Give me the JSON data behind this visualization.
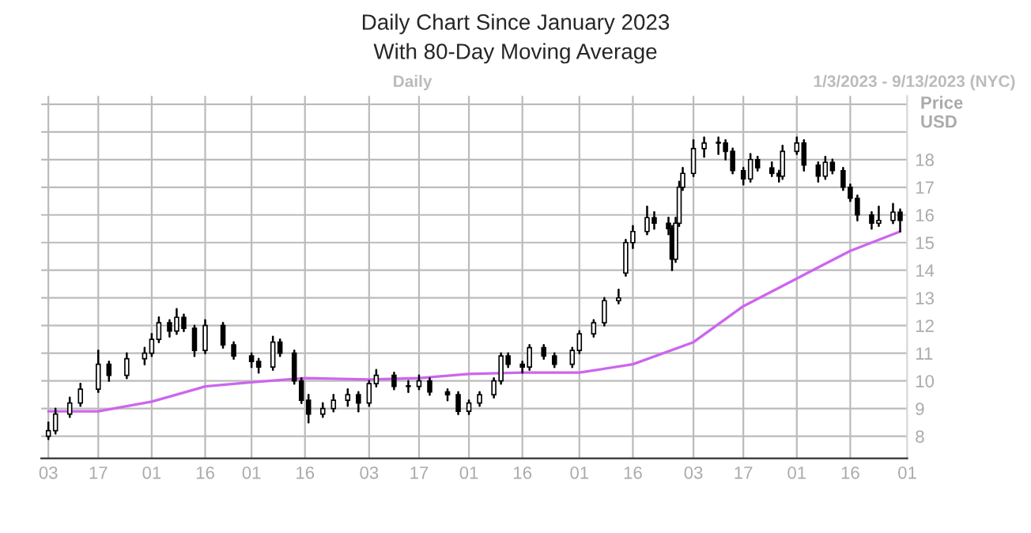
{
  "chart_data": {
    "type": "candlestick",
    "title": "Daily Chart Since January 2023",
    "subtitle": "With 80-Day Moving Average",
    "ylabel": "Price\nUSD",
    "annotations": [
      "Daily",
      "1/3/2023 - 9/13/2023 (NYC)"
    ],
    "x": [
      "2023-01-03",
      "2023-01-05",
      "2023-01-09",
      "2023-01-12",
      "2023-01-17",
      "2023-01-20",
      "2023-01-25",
      "2023-01-30",
      "2023-02-01",
      "2023-02-03",
      "2023-02-06",
      "2023-02-08",
      "2023-02-10",
      "2023-02-13",
      "2023-02-16",
      "2023-02-21",
      "2023-02-24",
      "2023-03-01",
      "2023-03-03",
      "2023-03-07",
      "2023-03-09",
      "2023-03-13",
      "2023-03-15",
      "2023-03-17",
      "2023-03-21",
      "2023-03-24",
      "2023-03-28",
      "2023-03-31",
      "2023-04-03",
      "2023-04-05",
      "2023-04-10",
      "2023-04-14",
      "2023-04-17",
      "2023-04-20",
      "2023-04-25",
      "2023-04-28",
      "2023-05-01",
      "2023-05-04",
      "2023-05-08",
      "2023-05-10",
      "2023-05-12",
      "2023-05-16",
      "2023-05-18",
      "2023-05-22",
      "2023-05-25",
      "2023-05-30",
      "2023-06-01",
      "2023-06-05",
      "2023-06-08",
      "2023-06-12",
      "2023-06-14",
      "2023-06-16",
      "2023-06-20",
      "2023-06-22",
      "2023-06-26",
      "2023-06-27",
      "2023-06-28",
      "2023-06-29",
      "2023-06-30",
      "2023-07-03",
      "2023-07-06",
      "2023-07-10",
      "2023-07-12",
      "2023-07-14",
      "2023-07-17",
      "2023-07-19",
      "2023-07-21",
      "2023-07-25",
      "2023-07-27",
      "2023-07-28",
      "2023-08-01",
      "2023-08-03",
      "2023-08-07",
      "2023-08-09",
      "2023-08-11",
      "2023-08-14",
      "2023-08-16",
      "2023-08-18",
      "2023-08-22",
      "2023-08-24",
      "2023-08-28",
      "2023-08-30"
    ],
    "ohlc": [
      [
        8.0,
        8.5,
        7.9,
        8.2
      ],
      [
        8.2,
        9.0,
        8.1,
        8.8
      ],
      [
        8.8,
        9.4,
        8.7,
        9.2
      ],
      [
        9.2,
        9.9,
        9.1,
        9.7
      ],
      [
        9.7,
        11.1,
        9.6,
        10.6
      ],
      [
        10.6,
        10.7,
        10.0,
        10.2
      ],
      [
        10.2,
        11.0,
        10.1,
        10.8
      ],
      [
        10.8,
        11.2,
        10.6,
        11.0
      ],
      [
        11.0,
        11.7,
        10.9,
        11.5
      ],
      [
        11.5,
        12.3,
        11.4,
        12.1
      ],
      [
        12.1,
        12.2,
        11.6,
        11.8
      ],
      [
        11.8,
        12.6,
        11.7,
        12.3
      ],
      [
        12.3,
        12.4,
        11.8,
        11.9
      ],
      [
        11.9,
        12.0,
        10.9,
        11.1
      ],
      [
        11.1,
        12.2,
        11.0,
        12.0
      ],
      [
        12.0,
        12.1,
        11.2,
        11.3
      ],
      [
        11.3,
        11.4,
        10.8,
        10.9
      ],
      [
        10.9,
        11.0,
        10.5,
        10.7
      ],
      [
        10.7,
        10.8,
        10.3,
        10.5
      ],
      [
        10.5,
        11.6,
        10.4,
        11.4
      ],
      [
        11.4,
        11.5,
        10.9,
        11.0
      ],
      [
        11.0,
        11.1,
        9.9,
        10.0
      ],
      [
        10.0,
        10.1,
        9.2,
        9.3
      ],
      [
        9.3,
        9.5,
        8.5,
        8.8
      ],
      [
        8.8,
        9.2,
        8.7,
        9.0
      ],
      [
        9.0,
        9.5,
        8.9,
        9.3
      ],
      [
        9.3,
        9.7,
        9.1,
        9.5
      ],
      [
        9.5,
        9.6,
        8.9,
        9.2
      ],
      [
        9.2,
        10.0,
        9.1,
        9.9
      ],
      [
        9.9,
        10.4,
        9.8,
        10.2
      ],
      [
        10.2,
        10.3,
        9.7,
        9.8
      ],
      [
        9.8,
        10.0,
        9.6,
        9.8
      ],
      [
        9.8,
        10.2,
        9.7,
        10.0
      ],
      [
        10.0,
        10.1,
        9.5,
        9.6
      ],
      [
        9.6,
        9.7,
        9.3,
        9.5
      ],
      [
        9.5,
        9.6,
        8.8,
        8.9
      ],
      [
        8.9,
        9.3,
        8.8,
        9.2
      ],
      [
        9.2,
        9.6,
        9.1,
        9.5
      ],
      [
        9.5,
        10.1,
        9.4,
        10.0
      ],
      [
        10.0,
        11.0,
        9.9,
        10.9
      ],
      [
        10.9,
        11.0,
        10.5,
        10.6
      ],
      [
        10.6,
        10.7,
        10.3,
        10.5
      ],
      [
        10.5,
        11.3,
        10.4,
        11.2
      ],
      [
        11.2,
        11.3,
        10.8,
        10.9
      ],
      [
        10.9,
        11.0,
        10.5,
        10.6
      ],
      [
        10.6,
        11.2,
        10.5,
        11.1
      ],
      [
        11.1,
        11.8,
        11.0,
        11.7
      ],
      [
        11.7,
        12.2,
        11.6,
        12.1
      ],
      [
        12.1,
        13.0,
        12.0,
        12.9
      ],
      [
        12.9,
        13.3,
        12.8,
        13.0
      ],
      [
        13.9,
        15.1,
        13.8,
        15.0
      ],
      [
        15.0,
        15.6,
        14.8,
        15.4
      ],
      [
        15.4,
        16.3,
        15.3,
        15.9
      ],
      [
        15.9,
        16.1,
        15.5,
        15.7
      ],
      [
        15.7,
        15.9,
        15.3,
        15.5
      ],
      [
        15.5,
        15.6,
        14.0,
        14.4
      ],
      [
        14.4,
        15.9,
        14.3,
        15.7
      ],
      [
        15.7,
        17.2,
        15.6,
        17.0
      ],
      [
        17.0,
        17.7,
        16.9,
        17.5
      ],
      [
        17.5,
        18.7,
        17.4,
        18.4
      ],
      [
        18.4,
        18.8,
        18.1,
        18.6
      ],
      [
        18.6,
        18.8,
        18.2,
        18.6
      ],
      [
        18.6,
        18.7,
        18.0,
        18.3
      ],
      [
        18.3,
        18.4,
        17.5,
        17.6
      ],
      [
        17.6,
        17.7,
        17.1,
        17.3
      ],
      [
        17.3,
        18.2,
        17.2,
        18.0
      ],
      [
        18.0,
        18.1,
        17.6,
        17.7
      ],
      [
        17.7,
        17.9,
        17.4,
        17.5
      ],
      [
        17.5,
        17.6,
        17.2,
        17.4
      ],
      [
        17.4,
        18.5,
        17.3,
        18.3
      ],
      [
        18.3,
        18.8,
        18.2,
        18.6
      ],
      [
        18.6,
        18.7,
        17.6,
        17.8
      ],
      [
        17.8,
        17.9,
        17.2,
        17.4
      ],
      [
        17.4,
        18.1,
        17.3,
        17.9
      ],
      [
        17.9,
        18.0,
        17.5,
        17.6
      ],
      [
        17.6,
        17.7,
        16.9,
        17.0
      ],
      [
        17.0,
        17.1,
        16.5,
        16.6
      ],
      [
        16.6,
        16.7,
        15.8,
        16.0
      ],
      [
        16.0,
        16.1,
        15.5,
        15.7
      ],
      [
        15.7,
        16.3,
        15.6,
        15.8
      ],
      [
        15.8,
        16.4,
        15.7,
        16.1
      ],
      [
        16.1,
        16.2,
        15.4,
        15.8
      ]
    ],
    "series": [
      {
        "type": "line",
        "color": "#cc66ee",
        "x": [
          "2023-01-03",
          "2023-01-17",
          "2023-02-01",
          "2023-02-16",
          "2023-03-01",
          "2023-03-16",
          "2023-04-03",
          "2023-04-17",
          "2023-05-01",
          "2023-05-16",
          "2023-06-01",
          "2023-06-16",
          "2023-07-03",
          "2023-07-17",
          "2023-08-01",
          "2023-08-16",
          "2023-08-30"
        ],
        "values": [
          8.9,
          8.9,
          9.25,
          9.8,
          9.95,
          10.1,
          10.05,
          10.1,
          10.25,
          10.3,
          10.3,
          10.6,
          11.4,
          12.7,
          13.7,
          14.7,
          15.4
        ]
      }
    ],
    "xlim": [
      "2023-01-01",
      "2023-09-01"
    ],
    "xticks": [
      {
        "value": "2023-01-03",
        "label": "03"
      },
      {
        "value": "2023-01-17",
        "label": "17"
      },
      {
        "value": "2023-02-01",
        "label": "01"
      },
      {
        "value": "2023-02-16",
        "label": "16"
      },
      {
        "value": "2023-03-01",
        "label": "01"
      },
      {
        "value": "2023-03-16",
        "label": "16"
      },
      {
        "value": "2023-04-03",
        "label": "03"
      },
      {
        "value": "2023-04-17",
        "label": "17"
      },
      {
        "value": "2023-05-01",
        "label": "01"
      },
      {
        "value": "2023-05-16",
        "label": "16"
      },
      {
        "value": "2023-06-01",
        "label": "01"
      },
      {
        "value": "2023-06-16",
        "label": "16"
      },
      {
        "value": "2023-07-03",
        "label": "03"
      },
      {
        "value": "2023-07-17",
        "label": "17"
      },
      {
        "value": "2023-08-01",
        "label": "01"
      },
      {
        "value": "2023-08-16",
        "label": "16"
      },
      {
        "value": "2023-09-01",
        "label": "01"
      }
    ],
    "ylim": [
      7.2,
      20.3
    ],
    "yticks": [
      8,
      9,
      10,
      11,
      12,
      13,
      14,
      15,
      16,
      17,
      18,
      {
        "value": 19,
        "label": null
      },
      {
        "value": 20,
        "label": null
      }
    ],
    "grid": true,
    "color": "#000000"
  }
}
